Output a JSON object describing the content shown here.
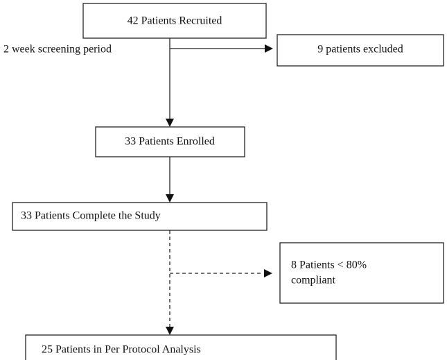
{
  "nodes": [
    {
      "label": "42 Patients Recruited"
    },
    {
      "label": "9 patients excluded"
    },
    {
      "label": "33 Patients Enrolled"
    },
    {
      "label": "33 Patients Complete the Study"
    },
    {
      "lines": [
        "8 Patients < 80%",
        "compliant"
      ]
    },
    {
      "label": "25 Patients in Per Protocol Analysis"
    }
  ],
  "edges": [
    {
      "label": "2 week screening period"
    }
  ]
}
